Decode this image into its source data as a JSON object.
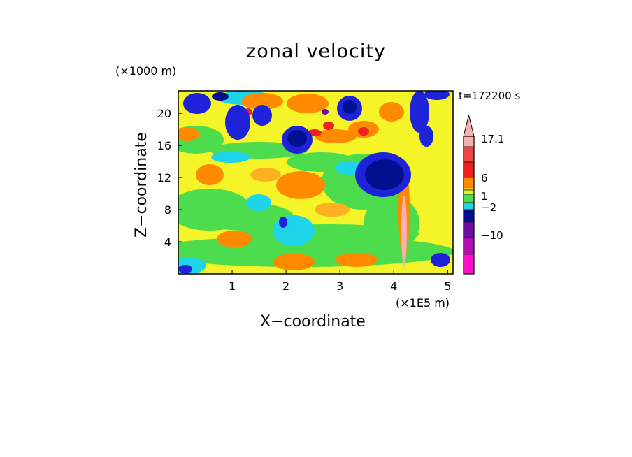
{
  "chart_data": {
    "type": "heatmap",
    "title": "zonal velocity",
    "xlabel": "X−coordinate",
    "ylabel": "Z−coordinate",
    "x_unit": "(×1E5 m)",
    "y_unit": "(×1000 m)",
    "annotation": "t=172200 s",
    "xlim": [
      0,
      5.1
    ],
    "ylim": [
      0,
      22.8
    ],
    "x_ticks": [
      "1",
      "2",
      "3",
      "4",
      "5"
    ],
    "y_ticks": [
      "4",
      "8",
      "12",
      "16",
      "20"
    ],
    "colorbar": {
      "labels": [
        "17.1",
        "6",
        "1",
        "−2",
        "−10"
      ],
      "colors": [
        "#f8b0b0",
        "#f04545",
        "#ee2020",
        "#ff8a00",
        "#ffcc33",
        "#eeee22",
        "#4ddc4d",
        "#1dd4e8",
        "#1e22d8",
        "#00108f",
        "#6a10a0",
        "#b010b0",
        "#ff10c8"
      ]
    },
    "grid": false,
    "legend_position": "right"
  }
}
